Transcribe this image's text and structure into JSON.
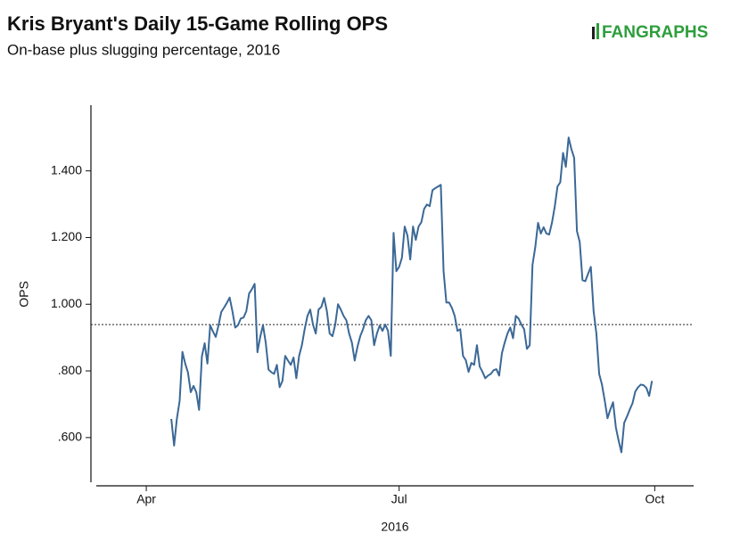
{
  "chart_data": {
    "type": "line",
    "title": "Kris Bryant's Daily 15-Game Rolling OPS",
    "subtitle": "On-base plus slugging percentage, 2016",
    "logo": "FANGRAPHS",
    "y_label": "OPS",
    "x_label": "2016",
    "color": "#3b6896",
    "reference_line": 0.939,
    "xlim": [
      "2016-03-14",
      "2016-10-15"
    ],
    "xticks": [
      {
        "value": "2016-04-01",
        "label": "Apr"
      },
      {
        "value": "2016-07-01",
        "label": "Jul"
      },
      {
        "value": "2016-10-01",
        "label": "Oct"
      }
    ],
    "ylim": [
      0.466,
      1.597
    ],
    "yticks": [
      {
        "value": 0.6,
        "label": ".600"
      },
      {
        "value": 0.8,
        "label": ".800"
      },
      {
        "value": 1.0,
        "label": "1.000"
      },
      {
        "value": 1.2,
        "label": "1.200"
      },
      {
        "value": 1.4,
        "label": "1.400"
      }
    ],
    "x": [
      "2016-04-10",
      "2016-04-11",
      "2016-04-12",
      "2016-04-13",
      "2016-04-14",
      "2016-04-15",
      "2016-04-16",
      "2016-04-17",
      "2016-04-18",
      "2016-04-19",
      "2016-04-20",
      "2016-04-21",
      "2016-04-22",
      "2016-04-23",
      "2016-04-24",
      "2016-04-25",
      "2016-04-26",
      "2016-04-27",
      "2016-04-28",
      "2016-04-29",
      "2016-04-30",
      "2016-05-01",
      "2016-05-02",
      "2016-05-03",
      "2016-05-04",
      "2016-05-05",
      "2016-05-06",
      "2016-05-07",
      "2016-05-08",
      "2016-05-09",
      "2016-05-10",
      "2016-05-11",
      "2016-05-12",
      "2016-05-13",
      "2016-05-14",
      "2016-05-15",
      "2016-05-16",
      "2016-05-17",
      "2016-05-18",
      "2016-05-19",
      "2016-05-20",
      "2016-05-21",
      "2016-05-22",
      "2016-05-23",
      "2016-05-24",
      "2016-05-25",
      "2016-05-26",
      "2016-05-27",
      "2016-05-28",
      "2016-05-29",
      "2016-05-30",
      "2016-05-31",
      "2016-06-01",
      "2016-06-02",
      "2016-06-03",
      "2016-06-04",
      "2016-06-05",
      "2016-06-06",
      "2016-06-07",
      "2016-06-08",
      "2016-06-09",
      "2016-06-10",
      "2016-06-11",
      "2016-06-12",
      "2016-06-13",
      "2016-06-14",
      "2016-06-15",
      "2016-06-16",
      "2016-06-17",
      "2016-06-18",
      "2016-06-19",
      "2016-06-20",
      "2016-06-21",
      "2016-06-22",
      "2016-06-23",
      "2016-06-24",
      "2016-06-25",
      "2016-06-26",
      "2016-06-27",
      "2016-06-28",
      "2016-06-29",
      "2016-06-30",
      "2016-07-01",
      "2016-07-02",
      "2016-07-03",
      "2016-07-04",
      "2016-07-05",
      "2016-07-06",
      "2016-07-07",
      "2016-07-08",
      "2016-07-09",
      "2016-07-10",
      "2016-07-11",
      "2016-07-12",
      "2016-07-13",
      "2016-07-14",
      "2016-07-15",
      "2016-07-16",
      "2016-07-17",
      "2016-07-18",
      "2016-07-19",
      "2016-07-20",
      "2016-07-21",
      "2016-07-22",
      "2016-07-23",
      "2016-07-24",
      "2016-07-25",
      "2016-07-26",
      "2016-07-27",
      "2016-07-28",
      "2016-07-29",
      "2016-07-30",
      "2016-07-31",
      "2016-08-01",
      "2016-08-02",
      "2016-08-03",
      "2016-08-04",
      "2016-08-05",
      "2016-08-06",
      "2016-08-07",
      "2016-08-08",
      "2016-08-09",
      "2016-08-10",
      "2016-08-11",
      "2016-08-12",
      "2016-08-13",
      "2016-08-14",
      "2016-08-15",
      "2016-08-16",
      "2016-08-17",
      "2016-08-18",
      "2016-08-19",
      "2016-08-20",
      "2016-08-21",
      "2016-08-22",
      "2016-08-23",
      "2016-08-24",
      "2016-08-25",
      "2016-08-26",
      "2016-08-27",
      "2016-08-28",
      "2016-08-29",
      "2016-08-30",
      "2016-08-31",
      "2016-09-01",
      "2016-09-02",
      "2016-09-03",
      "2016-09-04",
      "2016-09-05",
      "2016-09-06",
      "2016-09-07",
      "2016-09-08",
      "2016-09-09",
      "2016-09-10",
      "2016-09-11",
      "2016-09-12",
      "2016-09-13",
      "2016-09-14",
      "2016-09-15",
      "2016-09-16",
      "2016-09-17",
      "2016-09-18",
      "2016-09-19",
      "2016-09-20",
      "2016-09-21",
      "2016-09-22",
      "2016-09-23",
      "2016-09-24",
      "2016-09-25",
      "2016-09-26",
      "2016-09-27",
      "2016-09-28",
      "2016-09-29",
      "2016-09-30"
    ],
    "values": [
      0.656,
      0.576,
      0.656,
      0.71,
      0.857,
      0.822,
      0.795,
      0.736,
      0.755,
      0.736,
      0.683,
      0.843,
      0.883,
      0.822,
      0.937,
      0.918,
      0.902,
      0.937,
      0.977,
      0.99,
      1.004,
      1.02,
      0.979,
      0.93,
      0.937,
      0.957,
      0.96,
      0.979,
      1.032,
      1.045,
      1.061,
      0.856,
      0.902,
      0.937,
      0.884,
      0.804,
      0.796,
      0.791,
      0.818,
      0.751,
      0.77,
      0.845,
      0.831,
      0.818,
      0.84,
      0.778,
      0.845,
      0.877,
      0.925,
      0.965,
      0.984,
      0.939,
      0.912,
      0.984,
      0.992,
      1.019,
      0.979,
      0.912,
      0.904,
      0.939,
      1.0,
      0.984,
      0.965,
      0.952,
      0.912,
      0.885,
      0.831,
      0.872,
      0.904,
      0.925,
      0.952,
      0.965,
      0.952,
      0.877,
      0.912,
      0.936,
      0.92,
      0.939,
      0.92,
      0.845,
      1.214,
      1.099,
      1.112,
      1.139,
      1.233,
      1.206,
      1.134,
      1.233,
      1.193,
      1.233,
      1.246,
      1.286,
      1.299,
      1.294,
      1.342,
      1.348,
      1.353,
      1.358,
      1.099,
      1.005,
      1.005,
      0.989,
      0.965,
      0.92,
      0.925,
      0.845,
      0.832,
      0.797,
      0.824,
      0.818,
      0.877,
      0.813,
      0.797,
      0.778,
      0.786,
      0.791,
      0.802,
      0.805,
      0.786,
      0.853,
      0.885,
      0.912,
      0.93,
      0.898,
      0.965,
      0.957,
      0.939,
      0.925,
      0.866,
      0.877,
      1.118,
      1.171,
      1.244,
      1.212,
      1.231,
      1.212,
      1.209,
      1.244,
      1.292,
      1.353,
      1.366,
      1.454,
      1.412,
      1.5,
      1.465,
      1.439,
      1.219,
      1.187,
      1.072,
      1.069,
      1.091,
      1.112,
      0.979,
      0.912,
      0.791,
      0.759,
      0.711,
      0.658,
      0.684,
      0.706,
      0.631,
      0.591,
      0.556,
      0.644,
      0.663,
      0.684,
      0.703,
      0.738,
      0.751,
      0.759,
      0.757,
      0.749,
      0.725,
      0.77
    ]
  }
}
